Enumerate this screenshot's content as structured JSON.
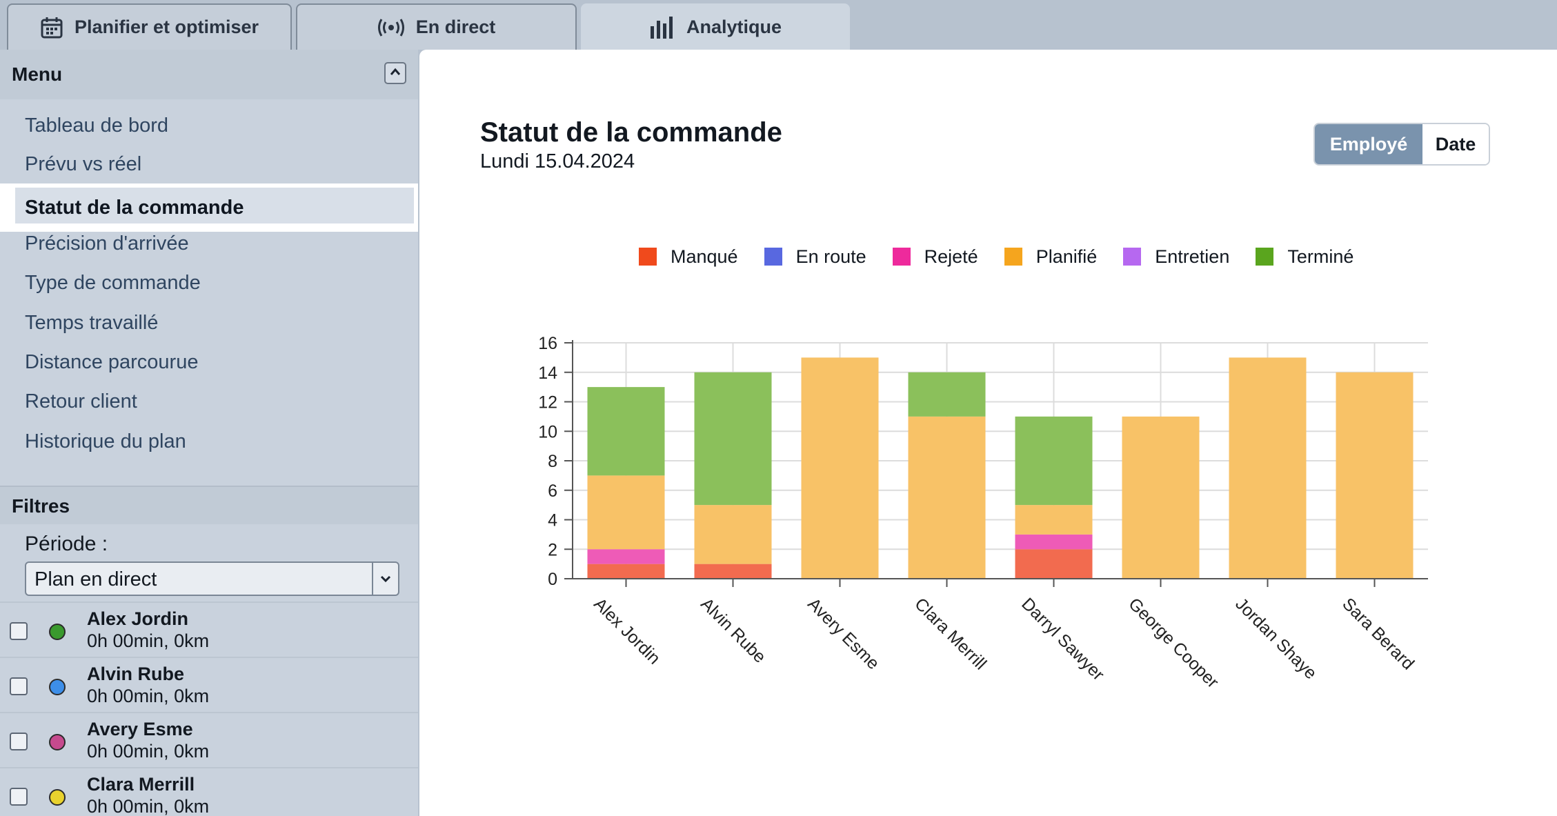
{
  "tabs": [
    {
      "label": "Planifier et optimiser",
      "icon": "calendar-icon"
    },
    {
      "label": "En direct",
      "icon": "broadcast-icon"
    },
    {
      "label": "Analytique",
      "icon": "bar-chart-icon"
    }
  ],
  "sidebar": {
    "menu_title": "Menu",
    "items": [
      {
        "label": "Tableau de bord"
      },
      {
        "label": "Prévu vs réel"
      },
      {
        "label": "Statut de la commande"
      },
      {
        "label": "Précision d'arrivée"
      },
      {
        "label": "Type de commande"
      },
      {
        "label": "Temps travaillé"
      },
      {
        "label": "Distance parcourue"
      },
      {
        "label": "Retour client"
      },
      {
        "label": "Historique du plan"
      }
    ],
    "active_index": 2,
    "filters_title": "Filtres",
    "period_label": "Période :",
    "period_value": "Plan en direct",
    "employees": [
      {
        "name": "Alex Jordin",
        "meta": "0h 00min, 0km",
        "color": "#3a9a2e"
      },
      {
        "name": "Alvin Rube",
        "meta": "0h 00min, 0km",
        "color": "#3d8ee8"
      },
      {
        "name": "Avery Esme",
        "meta": "0h 00min, 0km",
        "color": "#c64a8e"
      },
      {
        "name": "Clara Merrill",
        "meta": "0h 00min, 0km",
        "color": "#e9d22e"
      }
    ]
  },
  "main": {
    "title": "Statut de la commande",
    "subtitle": "Lundi 15.04.2024",
    "toggle": {
      "on": "Employé",
      "off": "Date"
    }
  },
  "chart_data": {
    "type": "bar",
    "stacked": true,
    "categories": [
      "Alex Jordin",
      "Alvin Rube",
      "Avery Esme",
      "Clara Merrill",
      "Darryl Sawyer",
      "George Cooper",
      "Jordan Shaye",
      "Sara Berard"
    ],
    "series": [
      {
        "name": "Manqué",
        "color": "#f26b4f",
        "values": [
          1,
          1,
          0,
          0,
          2,
          0,
          0,
          0
        ]
      },
      {
        "name": "En route",
        "color": "#5b6ee0",
        "values": [
          0,
          0,
          0,
          0,
          0,
          0,
          0,
          0
        ]
      },
      {
        "name": "Rejeté",
        "color": "#ee5bb7",
        "values": [
          1,
          0,
          0,
          0,
          1,
          0,
          0,
          0
        ]
      },
      {
        "name": "Planifié",
        "color": "#f8c267",
        "values": [
          5,
          4,
          15,
          11,
          2,
          11,
          15,
          14
        ]
      },
      {
        "name": "Entretien",
        "color": "#b66ee8",
        "values": [
          0,
          0,
          0,
          0,
          0,
          0,
          0,
          0
        ]
      },
      {
        "name": "Terminé",
        "color": "#8bc05b",
        "values": [
          6,
          9,
          0,
          3,
          6,
          0,
          0,
          0
        ]
      }
    ],
    "legend_colors": [
      "#f04a1c",
      "#5868e0",
      "#ee2a9c",
      "#f5a51e",
      "#b668f0",
      "#5aa51e"
    ],
    "yticks": [
      0,
      2,
      4,
      6,
      8,
      10,
      12,
      14,
      16
    ],
    "ylim": [
      0,
      16
    ],
    "grid": true,
    "legend_position": "top"
  }
}
